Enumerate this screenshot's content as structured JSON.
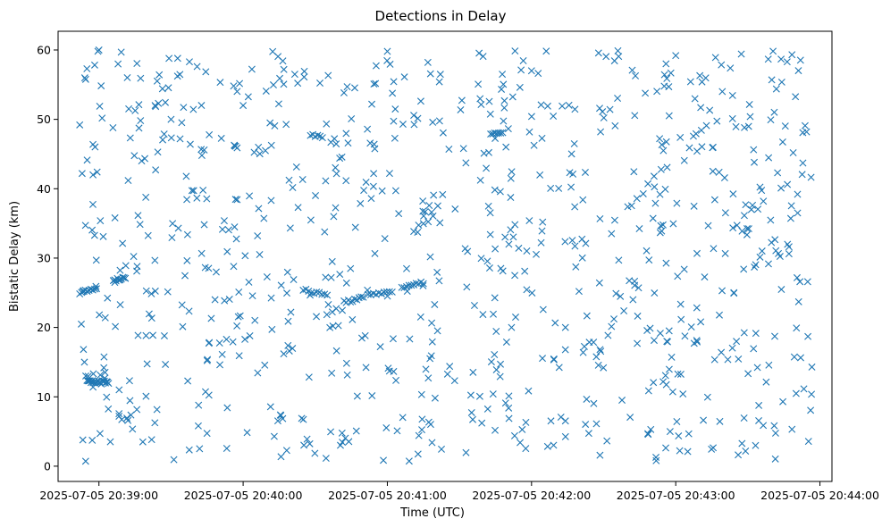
{
  "chart_data": {
    "type": "scatter",
    "title": "Detections in Delay",
    "xlabel": "Time (UTC)",
    "ylabel": "Bistatic Delay (km)",
    "x_axis_type": "time",
    "xlim": [
      "2025-07-05 20:38:43",
      "2025-07-05 20:44:05"
    ],
    "ylim": [
      -2.2,
      62.7
    ],
    "x_ticks": [
      "2025-07-05 20:39:00",
      "2025-07-05 20:40:00",
      "2025-07-05 20:41:00",
      "2025-07-05 20:42:00",
      "2025-07-05 20:43:00",
      "2025-07-05 20:44:00"
    ],
    "y_ticks": [
      0,
      10,
      20,
      30,
      40,
      50,
      60
    ],
    "grid": false,
    "marker": "x",
    "color": "#1f77b4",
    "x_range_start": "2025-07-05 20:38:52",
    "x_range_end": "2025-07-05 20:43:57",
    "note_points": "~900 random detections shown in original; dense tracks near 12 km (20:38:55–20:39:05), 25 km (20:38:52–20:39:00, 20:40:25–20:40:40), 27 km (20:39:05–20:39:10), 48 km (20:40:15, 20:41:35)",
    "points_sample": [
      {
        "x": "2025-07-05 20:38:52",
        "y": 49.2
      },
      {
        "x": "2025-07-05 20:38:53",
        "y": 42.2
      },
      {
        "x": "2025-07-05 20:38:55",
        "y": 57.3
      },
      {
        "x": "2025-07-05 20:39:00",
        "y": 60.0
      },
      {
        "x": "2025-07-05 20:39:30",
        "y": 50.0
      },
      {
        "x": "2025-07-05 20:40:00",
        "y": 52.0
      },
      {
        "x": "2025-07-05 20:41:00",
        "y": 59.8
      },
      {
        "x": "2025-07-05 20:42:00",
        "y": 57.0
      },
      {
        "x": "2025-07-05 20:43:00",
        "y": 59.2
      },
      {
        "x": "2025-07-05 20:43:55",
        "y": 18.7
      }
    ]
  }
}
